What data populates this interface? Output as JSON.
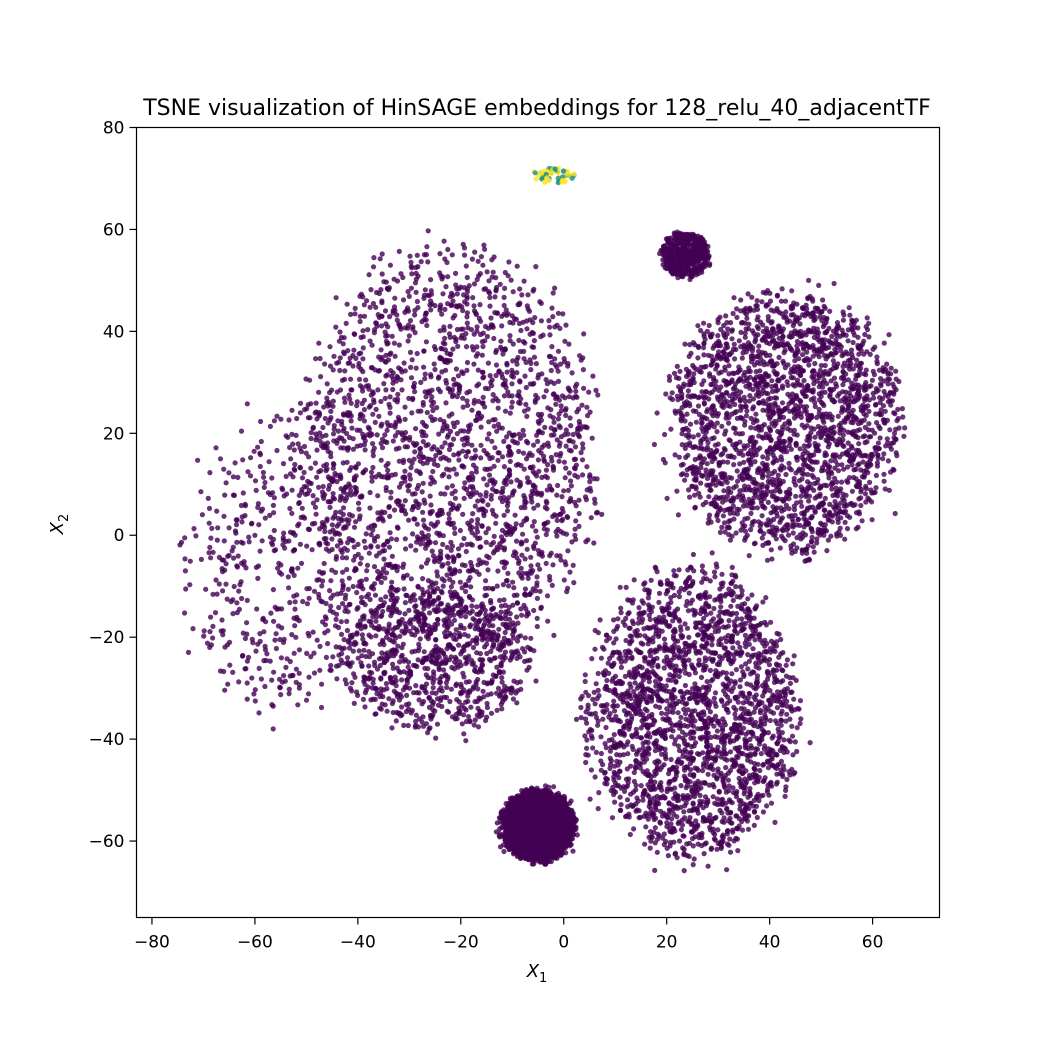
{
  "chart_data": {
    "type": "scatter",
    "title": "TSNE visualization of HinSAGE embeddings for 128_relu_40_adjacentTF",
    "xlabel": "X",
    "xlabel_sub": "1",
    "ylabel": "X",
    "ylabel_sub": "2",
    "xlim": [
      -83,
      73
    ],
    "ylim": [
      -75,
      80
    ],
    "xticks": [
      -80,
      -60,
      -40,
      -20,
      0,
      20,
      40,
      60
    ],
    "yticks": [
      -60,
      -40,
      -20,
      0,
      20,
      40,
      60,
      80
    ],
    "grid": false,
    "legend": "none",
    "colors": {
      "majority": "#440154",
      "teal": "#21918c",
      "yellow": "#fde725"
    },
    "clusters": [
      {
        "name": "left-main",
        "color": "majority",
        "cx": -22,
        "cy": 15,
        "rx": 28,
        "ry": 40,
        "density": "high"
      },
      {
        "name": "left-wing",
        "color": "majority",
        "cx": -55,
        "cy": -5,
        "rx": 18,
        "ry": 30,
        "density": "low"
      },
      {
        "name": "left-lower",
        "color": "majority",
        "cx": -25,
        "cy": -25,
        "rx": 18,
        "ry": 14,
        "density": "medium"
      },
      {
        "name": "right-upper",
        "color": "majority",
        "cx": 43,
        "cy": 22,
        "rx": 22,
        "ry": 25,
        "density": "high"
      },
      {
        "name": "right-upper-knot",
        "color": "majority",
        "cx": 23.5,
        "cy": 55,
        "rx": 4.5,
        "ry": 4.5,
        "density": "very-high"
      },
      {
        "name": "right-lower",
        "color": "majority",
        "cx": 25,
        "cy": -35,
        "rx": 20,
        "ry": 28,
        "density": "high"
      },
      {
        "name": "bottom-knot",
        "color": "majority",
        "cx": -5,
        "cy": -57,
        "rx": 7,
        "ry": 7,
        "density": "high"
      },
      {
        "name": "top-mixed",
        "color": "mixed",
        "cx": -2,
        "cy": 70.5,
        "rx": 4,
        "ry": 1.6,
        "density": "high"
      }
    ]
  }
}
